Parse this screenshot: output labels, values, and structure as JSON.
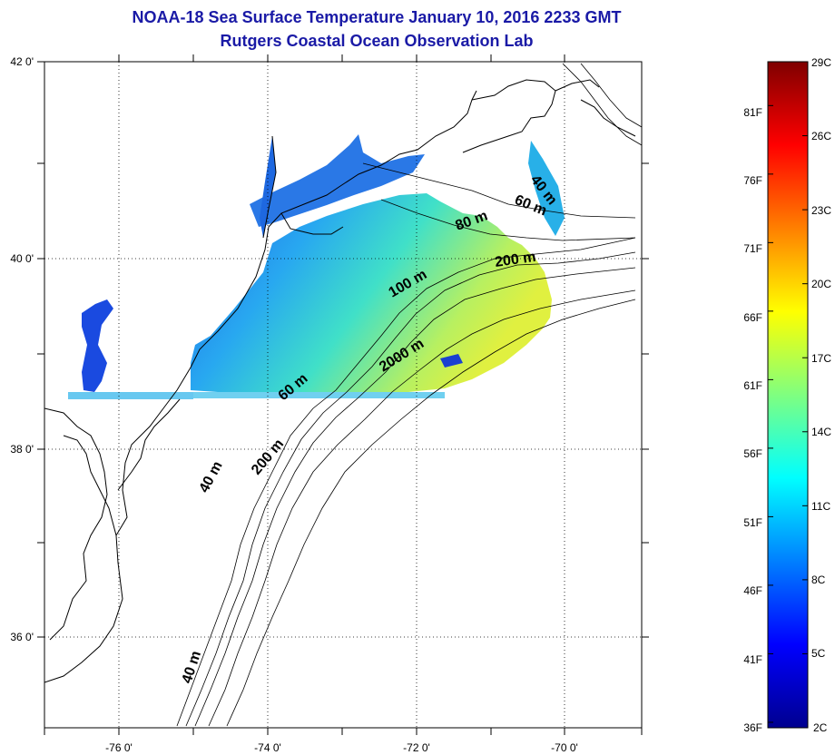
{
  "title": {
    "line1": "NOAA-18 Sea Surface Temperature January 10, 2016 2233 GMT",
    "line2": "Rutgers Coastal Ocean Observation Lab"
  },
  "map": {
    "lon_labels": [
      "-76 0'",
      "-74 0'",
      "-72 0'",
      "-70 0'"
    ],
    "lat_labels": [
      "42 0'",
      "40 0'",
      "38 0'",
      "36 0'"
    ],
    "contour_labels": [
      "40 m",
      "60 m",
      "80 m",
      "200 m",
      "100 m",
      "2000 m",
      "60 m",
      "40 m",
      "200 m",
      "40 m"
    ]
  },
  "colorbar": {
    "fahrenheit": [
      "36F",
      "41F",
      "46F",
      "51F",
      "56F",
      "61F",
      "66F",
      "71F",
      "76F",
      "81F"
    ],
    "celsius": [
      "2C",
      "5C",
      "8C",
      "11C",
      "14C",
      "17C",
      "20C",
      "23C",
      "26C",
      "29C"
    ],
    "range_celsius": [
      2,
      29
    ]
  },
  "colors": {
    "title": "#1a1aa6",
    "land": "#ffffff",
    "coast": "#000000",
    "cold": "#00008f",
    "hot": "#7f0000"
  }
}
